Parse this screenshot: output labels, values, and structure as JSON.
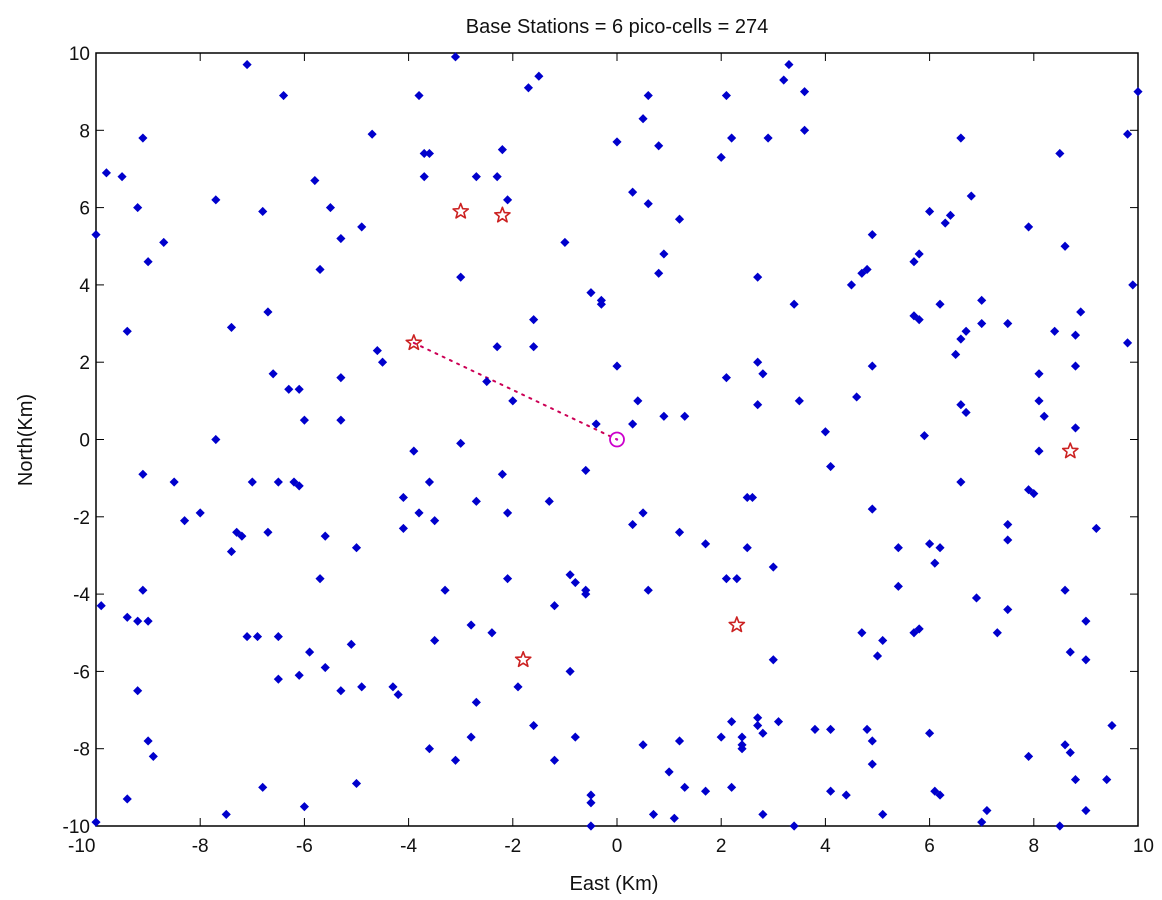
{
  "chart_data": {
    "type": "scatter",
    "title": "Base Stations = 6 pico-cells = 274",
    "xlabel": "East (Km)",
    "ylabel": "North(Km)",
    "xlim": [
      -10,
      10
    ],
    "ylim": [
      -10,
      10
    ],
    "xticks": [
      -10,
      -8,
      -6,
      -4,
      -2,
      0,
      2,
      4,
      6,
      8,
      10
    ],
    "yticks": [
      -10,
      -8,
      -6,
      -4,
      -2,
      0,
      2,
      4,
      6,
      8,
      10
    ],
    "grid": false,
    "colors": {
      "pico": "#0000cc",
      "base_station": "#cc2222",
      "user": "#cc00cc",
      "link": "#cc0055"
    },
    "series": [
      {
        "marker": "diamond",
        "points": [
          [
            -9.1,
            7.8
          ],
          [
            -9.8,
            6.9
          ],
          [
            -9.5,
            6.8
          ],
          [
            -9.2,
            6.0
          ],
          [
            -9.0,
            4.6
          ],
          [
            -8.7,
            5.1
          ],
          [
            -9.4,
            2.8
          ],
          [
            -10.0,
            5.3
          ],
          [
            -9.1,
            -0.9
          ],
          [
            -8.5,
            -1.1
          ],
          [
            -8.3,
            -2.1
          ],
          [
            -8.0,
            -1.9
          ],
          [
            -7.7,
            0.0
          ],
          [
            -7.7,
            6.2
          ],
          [
            -7.4,
            2.9
          ],
          [
            -7.1,
            9.7
          ],
          [
            -6.4,
            8.9
          ],
          [
            -6.8,
            5.9
          ],
          [
            -6.7,
            3.3
          ],
          [
            -6.6,
            1.7
          ],
          [
            -6.3,
            1.3
          ],
          [
            -6.1,
            1.3
          ],
          [
            -6.0,
            0.5
          ],
          [
            -5.8,
            6.7
          ],
          [
            -5.7,
            4.4
          ],
          [
            -5.5,
            6.0
          ],
          [
            -5.3,
            5.2
          ],
          [
            -5.3,
            1.6
          ],
          [
            -5.3,
            0.5
          ],
          [
            -4.7,
            7.9
          ],
          [
            -4.9,
            5.5
          ],
          [
            -4.6,
            2.3
          ],
          [
            -4.5,
            2.0
          ],
          [
            -3.8,
            8.9
          ],
          [
            -3.6,
            7.4
          ],
          [
            -3.7,
            7.4
          ],
          [
            -3.7,
            6.8
          ],
          [
            -3.1,
            9.9
          ],
          [
            -3.0,
            4.2
          ],
          [
            -2.7,
            6.8
          ],
          [
            -2.3,
            6.8
          ],
          [
            -2.2,
            7.5
          ],
          [
            -2.1,
            6.2
          ],
          [
            -1.5,
            9.4
          ],
          [
            -1.7,
            9.1
          ],
          [
            -1.6,
            2.4
          ],
          [
            -2.3,
            2.4
          ],
          [
            -2.0,
            1.0
          ],
          [
            -2.5,
            1.5
          ],
          [
            -1.6,
            3.1
          ],
          [
            -1.0,
            5.1
          ],
          [
            -0.5,
            3.8
          ],
          [
            -0.3,
            3.6
          ],
          [
            -0.3,
            3.5
          ],
          [
            -0.4,
            0.4
          ],
          [
            0.0,
            7.7
          ],
          [
            0.0,
            1.9
          ],
          [
            0.3,
            6.4
          ],
          [
            0.3,
            0.4
          ],
          [
            0.4,
            1.0
          ],
          [
            0.6,
            8.9
          ],
          [
            0.5,
            8.3
          ],
          [
            0.6,
            6.1
          ],
          [
            0.8,
            7.6
          ],
          [
            0.8,
            4.3
          ],
          [
            0.9,
            4.8
          ],
          [
            0.9,
            0.6
          ],
          [
            1.3,
            0.6
          ],
          [
            1.2,
            5.7
          ],
          [
            2.1,
            8.9
          ],
          [
            2.2,
            7.8
          ],
          [
            2.0,
            7.3
          ],
          [
            2.1,
            1.6
          ],
          [
            2.7,
            4.2
          ],
          [
            2.7,
            2.0
          ],
          [
            2.8,
            1.7
          ],
          [
            2.7,
            0.9
          ],
          [
            3.3,
            9.7
          ],
          [
            3.2,
            9.3
          ],
          [
            3.6,
            9.0
          ],
          [
            2.9,
            7.8
          ],
          [
            3.6,
            8.0
          ],
          [
            3.4,
            3.5
          ],
          [
            3.5,
            1.0
          ],
          [
            4.0,
            0.2
          ],
          [
            4.5,
            4.0
          ],
          [
            4.7,
            4.3
          ],
          [
            4.8,
            4.4
          ],
          [
            4.9,
            5.3
          ],
          [
            4.6,
            1.1
          ],
          [
            4.9,
            1.9
          ],
          [
            5.7,
            4.6
          ],
          [
            5.8,
            4.8
          ],
          [
            5.7,
            3.2
          ],
          [
            5.8,
            3.1
          ],
          [
            6.0,
            5.9
          ],
          [
            6.3,
            5.6
          ],
          [
            6.4,
            5.8
          ],
          [
            6.2,
            3.5
          ],
          [
            6.6,
            7.8
          ],
          [
            6.7,
            2.8
          ],
          [
            6.6,
            2.6
          ],
          [
            6.5,
            2.2
          ],
          [
            6.8,
            6.3
          ],
          [
            7.0,
            3.6
          ],
          [
            7.0,
            3.0
          ],
          [
            7.5,
            3.0
          ],
          [
            7.9,
            5.5
          ],
          [
            6.6,
            0.9
          ],
          [
            6.7,
            0.7
          ],
          [
            5.9,
            0.1
          ],
          [
            8.1,
            1.7
          ],
          [
            8.1,
            1.0
          ],
          [
            8.2,
            0.6
          ],
          [
            8.4,
            2.8
          ],
          [
            8.5,
            7.4
          ],
          [
            8.6,
            5.0
          ],
          [
            8.9,
            3.3
          ],
          [
            8.8,
            2.7
          ],
          [
            8.8,
            1.9
          ],
          [
            8.8,
            0.3
          ],
          [
            9.8,
            7.9
          ],
          [
            10.0,
            9.0
          ],
          [
            9.9,
            4.0
          ],
          [
            9.8,
            2.5
          ],
          [
            8.1,
            -0.3
          ],
          [
            7.9,
            -1.3
          ],
          [
            8.0,
            -1.4
          ],
          [
            6.6,
            -1.1
          ],
          [
            7.5,
            -2.2
          ],
          [
            7.5,
            -2.6
          ],
          [
            6.0,
            -2.7
          ],
          [
            6.1,
            -3.2
          ],
          [
            6.2,
            -2.8
          ],
          [
            5.4,
            -2.8
          ],
          [
            4.9,
            -1.8
          ],
          [
            4.1,
            -0.7
          ],
          [
            5.4,
            -3.8
          ],
          [
            3.0,
            -3.3
          ],
          [
            2.5,
            -2.8
          ],
          [
            2.5,
            -1.5
          ],
          [
            2.6,
            -1.5
          ],
          [
            1.7,
            -2.7
          ],
          [
            1.2,
            -2.4
          ],
          [
            0.5,
            -1.9
          ],
          [
            0.3,
            -2.2
          ],
          [
            -0.6,
            -0.8
          ],
          [
            -1.3,
            -1.6
          ],
          [
            -2.1,
            -1.9
          ],
          [
            -2.2,
            -0.9
          ],
          [
            -2.7,
            -1.6
          ],
          [
            -3.0,
            -0.1
          ],
          [
            -3.5,
            -2.1
          ],
          [
            -3.6,
            -1.1
          ],
          [
            -3.8,
            -1.9
          ],
          [
            -3.9,
            -0.3
          ],
          [
            -4.1,
            -1.5
          ],
          [
            -4.1,
            -2.3
          ],
          [
            -5.0,
            -2.8
          ],
          [
            -5.6,
            -2.5
          ],
          [
            -5.7,
            -3.6
          ],
          [
            -6.2,
            -1.1
          ],
          [
            -6.1,
            -1.2
          ],
          [
            -6.5,
            -1.1
          ],
          [
            -7.0,
            -1.1
          ],
          [
            -6.7,
            -2.4
          ],
          [
            -7.3,
            -2.4
          ],
          [
            -7.4,
            -2.9
          ],
          [
            -7.2,
            -2.5
          ],
          [
            -9.1,
            -3.9
          ],
          [
            -9.9,
            -4.3
          ],
          [
            -9.4,
            -4.6
          ],
          [
            -9.2,
            -4.7
          ],
          [
            -9.0,
            -4.7
          ],
          [
            -9.2,
            -6.5
          ],
          [
            -9.0,
            -7.8
          ],
          [
            -8.9,
            -8.2
          ],
          [
            -9.4,
            -9.3
          ],
          [
            -10.0,
            -9.9
          ],
          [
            -7.1,
            -5.1
          ],
          [
            -6.9,
            -5.1
          ],
          [
            -6.5,
            -5.1
          ],
          [
            -6.5,
            -6.2
          ],
          [
            -6.1,
            -6.1
          ],
          [
            -5.9,
            -5.5
          ],
          [
            -5.6,
            -5.9
          ],
          [
            -5.3,
            -6.5
          ],
          [
            -5.1,
            -5.3
          ],
          [
            -4.9,
            -6.4
          ],
          [
            -4.3,
            -6.4
          ],
          [
            -4.2,
            -6.6
          ],
          [
            -6.8,
            -9.0
          ],
          [
            -6.0,
            -9.5
          ],
          [
            -5.0,
            -8.9
          ],
          [
            -7.5,
            -9.7
          ],
          [
            -3.5,
            -5.2
          ],
          [
            -3.3,
            -3.9
          ],
          [
            -2.8,
            -4.8
          ],
          [
            -2.4,
            -5.0
          ],
          [
            -2.1,
            -3.6
          ],
          [
            -2.7,
            -6.8
          ],
          [
            -2.8,
            -7.7
          ],
          [
            -3.1,
            -8.3
          ],
          [
            -3.6,
            -8.0
          ],
          [
            -1.9,
            -6.4
          ],
          [
            -1.6,
            -7.4
          ],
          [
            -1.2,
            -4.3
          ],
          [
            -0.9,
            -3.5
          ],
          [
            -0.8,
            -3.7
          ],
          [
            -0.6,
            -3.9
          ],
          [
            -0.6,
            -4.0
          ],
          [
            -0.9,
            -6.0
          ],
          [
            -0.8,
            -7.7
          ],
          [
            -1.2,
            -8.3
          ],
          [
            -0.5,
            -9.2
          ],
          [
            -0.5,
            -9.4
          ],
          [
            -0.5,
            -10.0
          ],
          [
            0.6,
            -3.9
          ],
          [
            0.5,
            -7.9
          ],
          [
            0.7,
            -9.7
          ],
          [
            1.0,
            -8.6
          ],
          [
            1.2,
            -7.8
          ],
          [
            1.1,
            -9.8
          ],
          [
            1.3,
            -9.0
          ],
          [
            1.7,
            -9.1
          ],
          [
            2.0,
            -7.7
          ],
          [
            2.2,
            -7.3
          ],
          [
            2.1,
            -3.6
          ],
          [
            2.3,
            -3.6
          ],
          [
            2.2,
            -9.0
          ],
          [
            2.7,
            -7.2
          ],
          [
            2.7,
            -7.4
          ],
          [
            2.8,
            -7.6
          ],
          [
            2.4,
            -7.9
          ],
          [
            2.4,
            -8.0
          ],
          [
            2.4,
            -7.7
          ],
          [
            3.1,
            -7.3
          ],
          [
            3.0,
            -5.7
          ],
          [
            2.8,
            -9.7
          ],
          [
            3.4,
            -10.0
          ],
          [
            3.8,
            -7.5
          ],
          [
            4.1,
            -7.5
          ],
          [
            4.1,
            -9.1
          ],
          [
            4.4,
            -9.2
          ],
          [
            4.7,
            -5.0
          ],
          [
            4.8,
            -7.5
          ],
          [
            4.9,
            -7.8
          ],
          [
            4.9,
            -8.4
          ],
          [
            5.0,
            -5.6
          ],
          [
            5.1,
            -5.2
          ],
          [
            5.1,
            -9.7
          ],
          [
            5.7,
            -5.0
          ],
          [
            5.8,
            -4.9
          ],
          [
            6.0,
            -7.6
          ],
          [
            6.1,
            -9.1
          ],
          [
            6.2,
            -9.2
          ],
          [
            6.9,
            -4.1
          ],
          [
            7.1,
            -9.6
          ],
          [
            7.0,
            -9.9
          ],
          [
            7.3,
            -5.0
          ],
          [
            7.5,
            -4.4
          ],
          [
            7.9,
            -8.2
          ],
          [
            8.6,
            -3.9
          ],
          [
            8.7,
            -5.5
          ],
          [
            8.6,
            -7.9
          ],
          [
            8.7,
            -8.1
          ],
          [
            8.8,
            -8.8
          ],
          [
            8.5,
            -10.0
          ],
          [
            9.0,
            -4.7
          ],
          [
            9.0,
            -5.7
          ],
          [
            9.0,
            -9.6
          ],
          [
            9.4,
            -8.8
          ],
          [
            9.5,
            -7.4
          ],
          [
            9.2,
            -2.3
          ]
        ]
      },
      {
        "marker": "star",
        "points": [
          [
            -3.0,
            5.9
          ],
          [
            -2.2,
            5.8
          ],
          [
            -3.9,
            2.5
          ],
          [
            8.7,
            -0.3
          ],
          [
            2.3,
            -4.8
          ],
          [
            -1.8,
            -5.7
          ]
        ]
      },
      {
        "marker": "circle",
        "points": [
          [
            0.0,
            0.0
          ]
        ]
      }
    ],
    "links": [
      [
        [
          -3.9,
          2.5
        ],
        [
          0.0,
          0.0
        ]
      ]
    ]
  }
}
